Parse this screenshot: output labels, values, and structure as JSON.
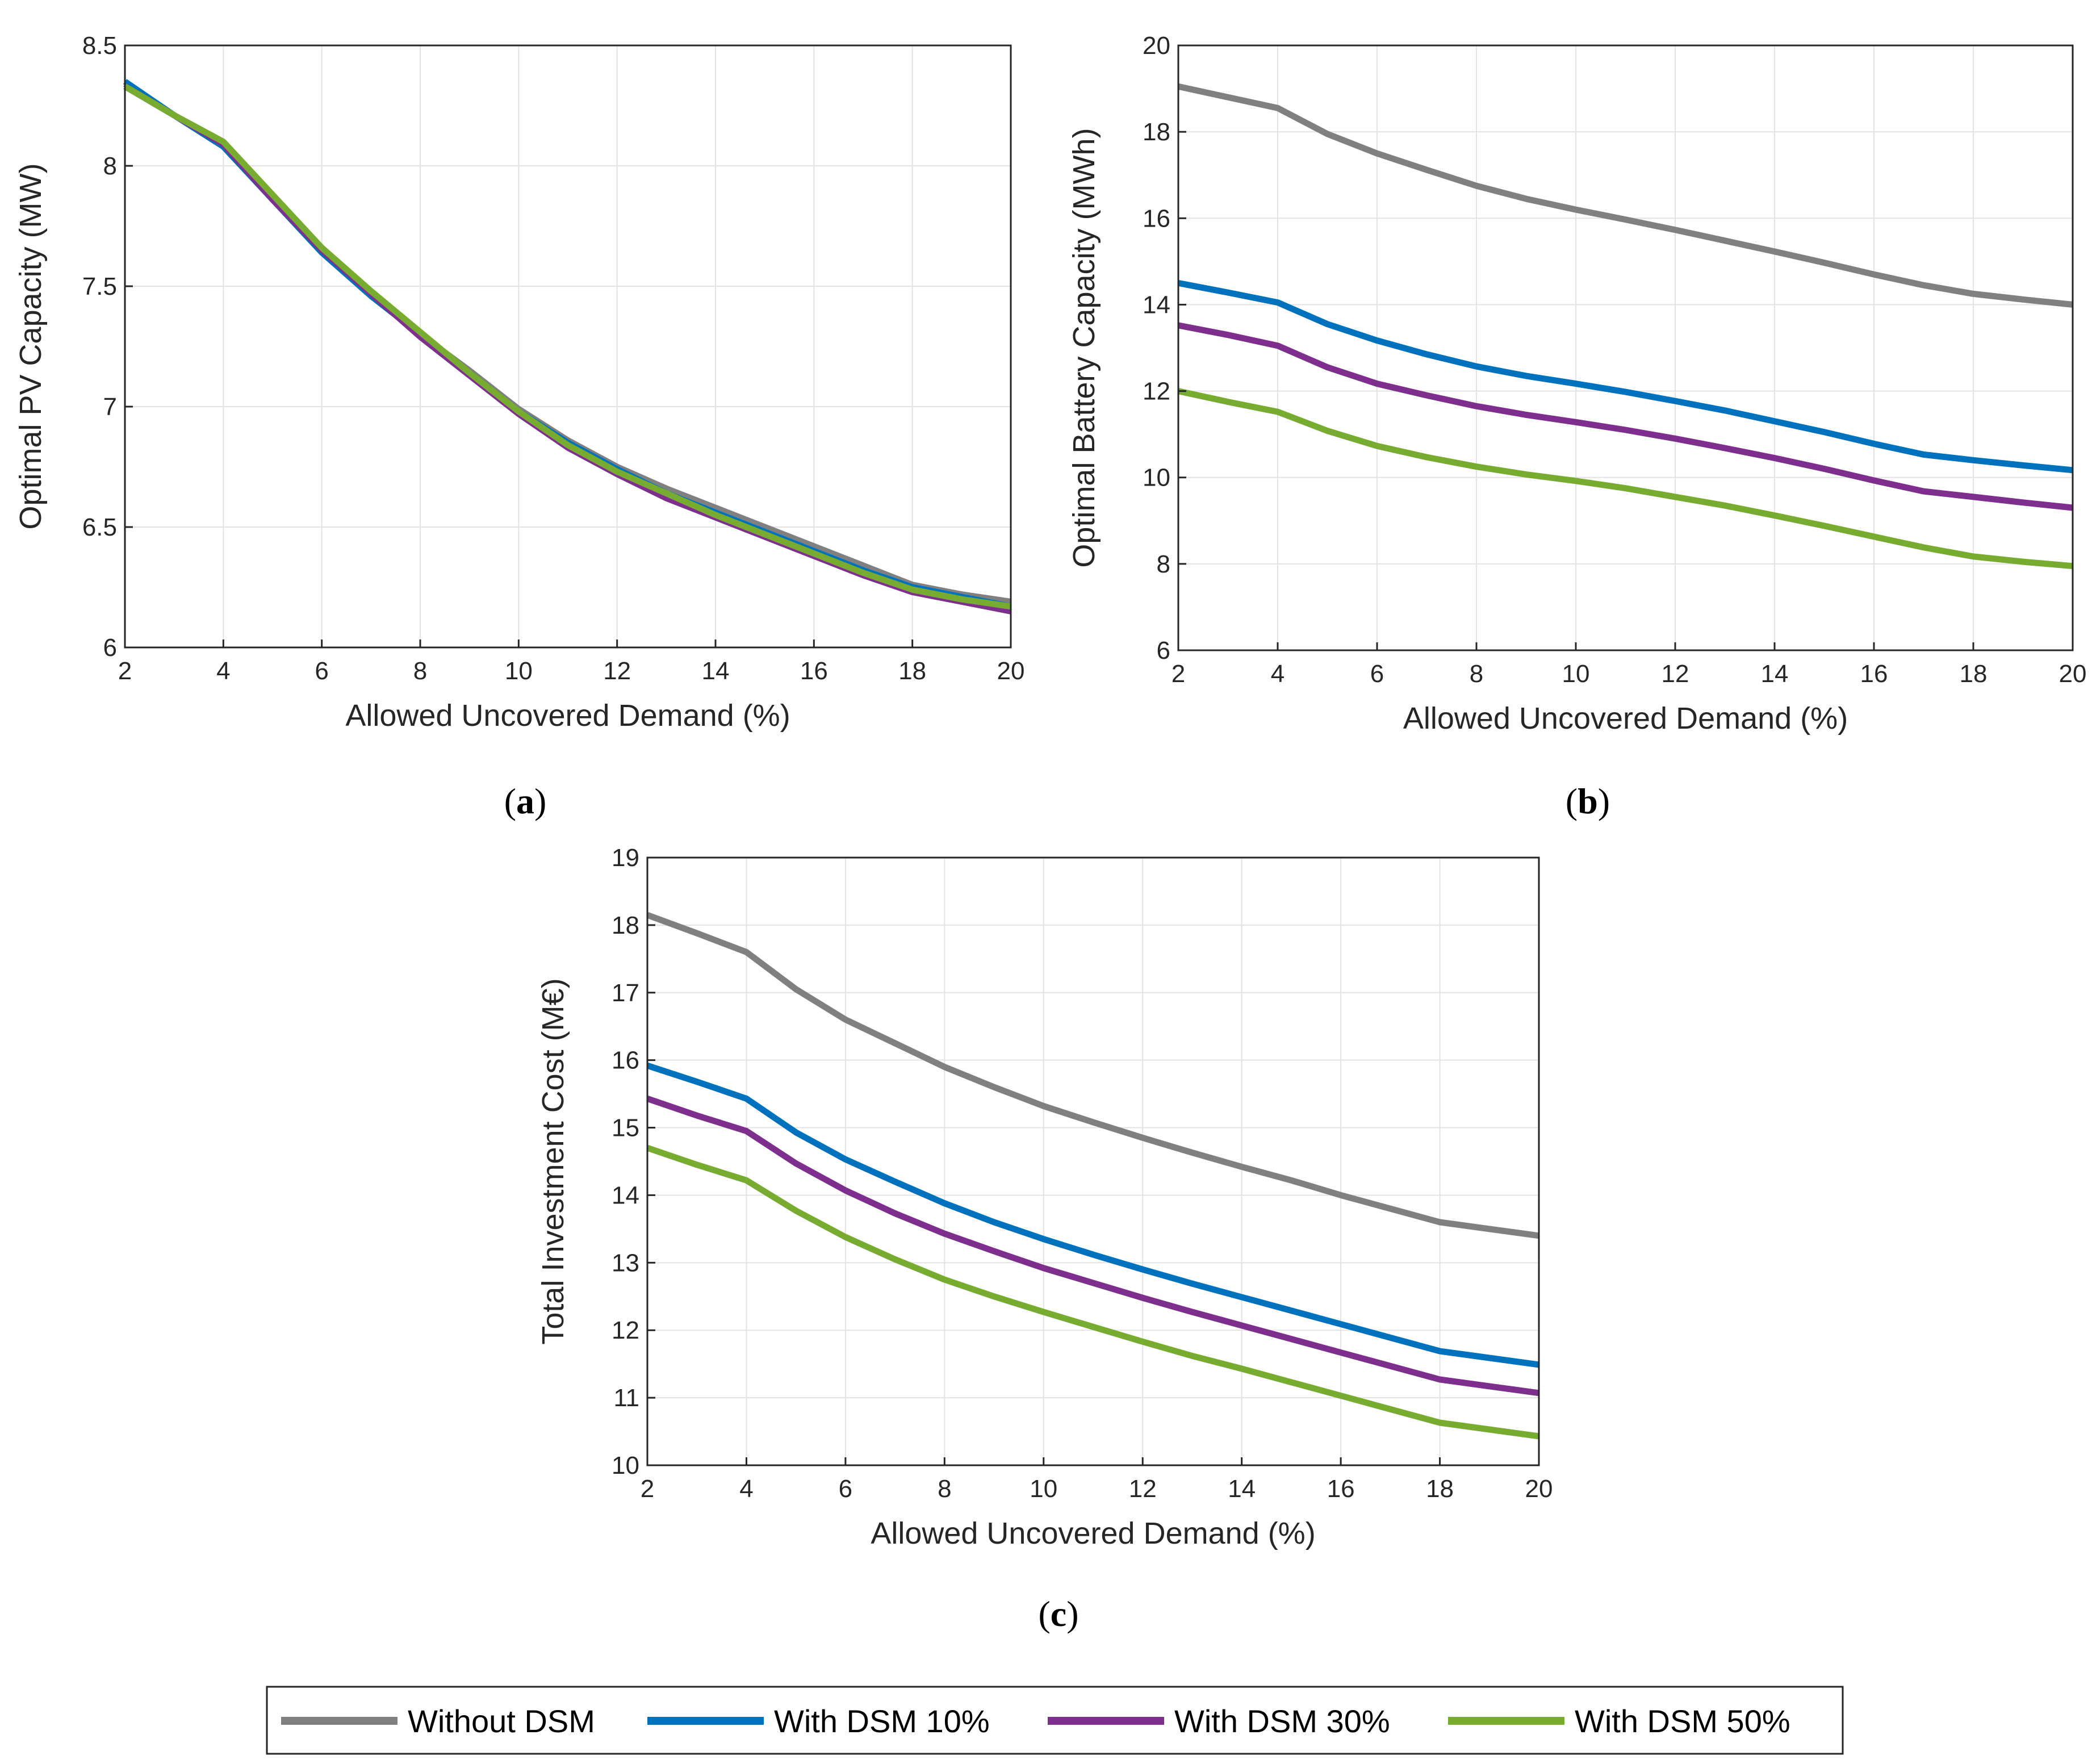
{
  "colors": {
    "without_dsm": "#808080",
    "dsm10": "#0072BD",
    "dsm30": "#7E2F8E",
    "dsm50": "#77AC30",
    "grid": "#e3e3e3",
    "axis": "#262626"
  },
  "legend": {
    "placement": "bottom-center",
    "items": [
      {
        "label": "Without DSM",
        "color": "#808080"
      },
      {
        "label": "With DSM 10%",
        "color": "#0072BD"
      },
      {
        "label": "With DSM 30%",
        "color": "#7E2F8E"
      },
      {
        "label": "With DSM 50%",
        "color": "#77AC30"
      }
    ]
  },
  "chart_data": [
    {
      "panel": "a",
      "type": "line",
      "xlabel": "Allowed Uncovered Demand (%)",
      "ylabel": "Optimal PV Capacity (MW)",
      "xlim": [
        2,
        20
      ],
      "ylim": [
        6,
        8.5
      ],
      "xticks": [
        2,
        4,
        6,
        8,
        10,
        12,
        14,
        16,
        18,
        20
      ],
      "yticks": [
        6,
        6.5,
        7,
        7.5,
        8,
        8.5
      ],
      "grid": true,
      "x": [
        2,
        3,
        4,
        5,
        6,
        7,
        8,
        9,
        10,
        11,
        12,
        13,
        14,
        15,
        16,
        17,
        18,
        19,
        20
      ],
      "series": [
        {
          "key": "without_dsm",
          "values": [
            8.34,
            8.21,
            8.09,
            7.86,
            7.65,
            7.46,
            7.3,
            7.15,
            6.99,
            6.86,
            6.75,
            6.66,
            6.58,
            6.5,
            6.42,
            6.34,
            6.26,
            6.22,
            6.19
          ]
        },
        {
          "key": "dsm10",
          "values": [
            8.35,
            8.21,
            8.08,
            7.86,
            7.64,
            7.46,
            7.3,
            7.14,
            6.98,
            6.85,
            6.74,
            6.64,
            6.56,
            6.48,
            6.4,
            6.32,
            6.25,
            6.21,
            6.17
          ]
        },
        {
          "key": "dsm30",
          "values": [
            8.33,
            8.21,
            8.09,
            7.86,
            7.65,
            7.47,
            7.29,
            7.13,
            6.97,
            6.83,
            6.72,
            6.62,
            6.54,
            6.46,
            6.38,
            6.3,
            6.23,
            6.19,
            6.15
          ]
        },
        {
          "key": "dsm50",
          "values": [
            8.33,
            8.21,
            8.1,
            7.88,
            7.66,
            7.48,
            7.31,
            7.14,
            6.98,
            6.84,
            6.73,
            6.64,
            6.55,
            6.47,
            6.39,
            6.31,
            6.24,
            6.2,
            6.17
          ]
        }
      ]
    },
    {
      "panel": "b",
      "type": "line",
      "xlabel": "Allowed Uncovered Demand (%)",
      "ylabel": "Optimal Battery Capacity (MWh)",
      "xlim": [
        2,
        20
      ],
      "ylim": [
        6,
        20
      ],
      "xticks": [
        2,
        4,
        6,
        8,
        10,
        12,
        14,
        16,
        18,
        20
      ],
      "yticks": [
        6,
        8,
        10,
        12,
        14,
        16,
        18,
        20
      ],
      "grid": true,
      "x": [
        2,
        3,
        4,
        5,
        6,
        7,
        8,
        9,
        10,
        11,
        12,
        13,
        14,
        15,
        16,
        17,
        18,
        19,
        20
      ],
      "series": [
        {
          "key": "without_dsm",
          "values": [
            19.05,
            18.8,
            18.55,
            17.95,
            17.5,
            17.12,
            16.75,
            16.45,
            16.2,
            15.97,
            15.73,
            15.48,
            15.23,
            14.97,
            14.7,
            14.45,
            14.25,
            14.12,
            14.0
          ]
        },
        {
          "key": "dsm10",
          "values": [
            14.5,
            14.28,
            14.05,
            13.55,
            13.17,
            12.85,
            12.57,
            12.35,
            12.17,
            11.98,
            11.77,
            11.55,
            11.3,
            11.05,
            10.78,
            10.53,
            10.4,
            10.28,
            10.17
          ]
        },
        {
          "key": "dsm30",
          "values": [
            13.52,
            13.3,
            13.05,
            12.55,
            12.17,
            11.9,
            11.65,
            11.45,
            11.28,
            11.1,
            10.9,
            10.68,
            10.45,
            10.2,
            9.93,
            9.68,
            9.55,
            9.42,
            9.3
          ]
        },
        {
          "key": "dsm50",
          "values": [
            12.0,
            11.75,
            11.52,
            11.08,
            10.73,
            10.47,
            10.25,
            10.07,
            9.92,
            9.75,
            9.55,
            9.35,
            9.12,
            8.88,
            8.63,
            8.38,
            8.17,
            8.05,
            7.95
          ]
        }
      ]
    },
    {
      "panel": "c",
      "type": "line",
      "xlabel": "Allowed Uncovered Demand (%)",
      "ylabel": "Total Investment Cost (M€)",
      "xlim": [
        2,
        20
      ],
      "ylim": [
        10,
        19
      ],
      "xticks": [
        2,
        4,
        6,
        8,
        10,
        12,
        14,
        16,
        18,
        20
      ],
      "yticks": [
        10,
        11,
        12,
        13,
        14,
        15,
        16,
        17,
        18,
        19
      ],
      "grid": true,
      "x": [
        2,
        3,
        4,
        5,
        6,
        7,
        8,
        9,
        10,
        11,
        12,
        13,
        14,
        15,
        16,
        17,
        18,
        19,
        20
      ],
      "series": [
        {
          "key": "without_dsm",
          "values": [
            18.15,
            17.88,
            17.6,
            17.05,
            16.6,
            16.25,
            15.9,
            15.6,
            15.32,
            15.08,
            14.85,
            14.63,
            14.42,
            14.22,
            14.0,
            13.8,
            13.6,
            13.5,
            13.4
          ]
        },
        {
          "key": "dsm10",
          "values": [
            15.92,
            15.68,
            15.43,
            14.93,
            14.53,
            14.2,
            13.88,
            13.6,
            13.35,
            13.12,
            12.9,
            12.69,
            12.49,
            12.29,
            12.09,
            11.89,
            11.69,
            11.59,
            11.49
          ]
        },
        {
          "key": "dsm30",
          "values": [
            15.43,
            15.18,
            14.95,
            14.47,
            14.07,
            13.73,
            13.43,
            13.17,
            12.92,
            12.7,
            12.48,
            12.27,
            12.07,
            11.87,
            11.67,
            11.47,
            11.27,
            11.17,
            11.07
          ]
        },
        {
          "key": "dsm50",
          "values": [
            14.7,
            14.45,
            14.22,
            13.77,
            13.38,
            13.05,
            12.75,
            12.5,
            12.27,
            12.05,
            11.83,
            11.62,
            11.43,
            11.23,
            11.03,
            10.83,
            10.63,
            10.53,
            10.43
          ]
        }
      ]
    }
  ],
  "panel_labels": {
    "a": {
      "open": "(",
      "letter": "a",
      "close": ")"
    },
    "b": {
      "open": "(",
      "letter": "b",
      "close": ")"
    },
    "c": {
      "open": "(",
      "letter": "c",
      "close": ")"
    }
  }
}
